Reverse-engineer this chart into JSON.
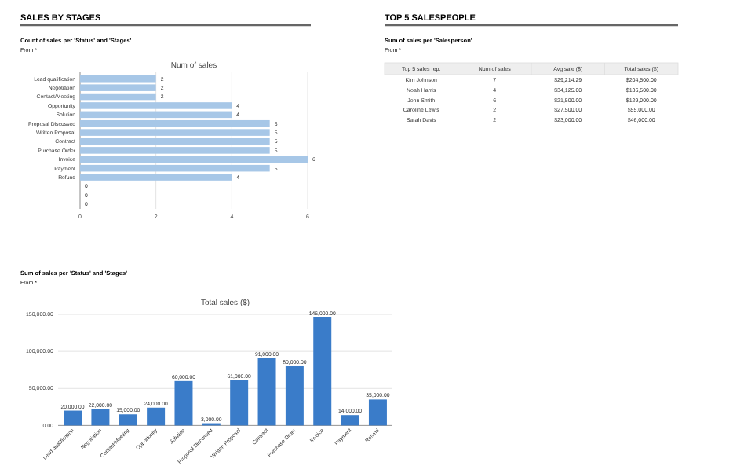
{
  "chart_data": [
    {
      "type": "bar",
      "orientation": "horizontal",
      "title": "Num of sales",
      "annotations": [
        "SALES BY STAGES",
        "Count of sales per 'Status' and 'Stages'",
        "From *"
      ],
      "categories": [
        "Lead qualification",
        "Negotiation",
        "Contact/Meeting",
        "Opportunity",
        "Solution",
        "Proposal Discussed",
        "Written Proposal",
        "Contract",
        "Purchase Order",
        "Invoice",
        "Payment",
        "Refund",
        null,
        null,
        null
      ],
      "values": [
        2,
        2,
        2,
        4,
        4,
        5,
        5,
        5,
        5,
        6,
        5,
        4,
        0,
        0,
        0
      ],
      "color": "#a7c7e7",
      "xlim": [
        0,
        6
      ],
      "xticks": [
        0,
        2,
        4,
        6
      ],
      "grid": "x",
      "data_labels": true
    },
    {
      "type": "bar",
      "title": "Total sales ($)",
      "annotations": [
        "Sum of sales per 'Status' and 'Stages'",
        "From *"
      ],
      "categories": [
        "Lead qualification",
        "Negotiation",
        "Contact/Meeting",
        "Opportunity",
        "Solution",
        "Proposal Discussed",
        "Written Proposal",
        "Contract",
        "Purchase Order",
        "Invoice",
        "Payment",
        "Refund"
      ],
      "values": [
        20000,
        22000,
        15000,
        24000,
        60000,
        3000,
        61000,
        91000,
        80000,
        146000,
        14000,
        35000
      ],
      "value_labels": [
        "20,000.00",
        "22,000.00",
        "15,000.00",
        "24,000.00",
        "60,000.00",
        "3,000.00",
        "61,000.00",
        "91,000.00",
        "80,000.00",
        "146,000.00",
        "14,000.00",
        "35,000.00"
      ],
      "color": "#3a7cc9",
      "ylim": [
        0,
        150000
      ],
      "yticks": [
        {
          "value": 0,
          "label": "0.00"
        },
        {
          "value": 50000,
          "label": "50,000.00"
        },
        {
          "value": 100000,
          "label": "100,000.00"
        },
        {
          "value": 150000,
          "label": "150,000.00"
        }
      ],
      "grid": "y"
    },
    {
      "type": "other",
      "title": "TOP 5 SALESPEOPLE",
      "subtitle": "Sum of sales per 'Salesperson'",
      "annotations": [
        "From *",
        "Top 5 sales rep.",
        "Num of sales",
        "Avg sale ($)",
        "Total sales ($)",
        "Kim Johnson",
        "7",
        "$29,214.29",
        "$204,500.00",
        "Noah Harris",
        "4",
        "$34,125.00",
        "$136,500.00",
        "John Smith",
        "6",
        "$21,500.00",
        "$129,000.00",
        "Caroline Lewis",
        "2",
        "$27,500.00",
        "$55,000.00",
        "Sarah Davis",
        "2",
        "$23,000.00",
        "$46,000.00"
      ]
    }
  ]
}
